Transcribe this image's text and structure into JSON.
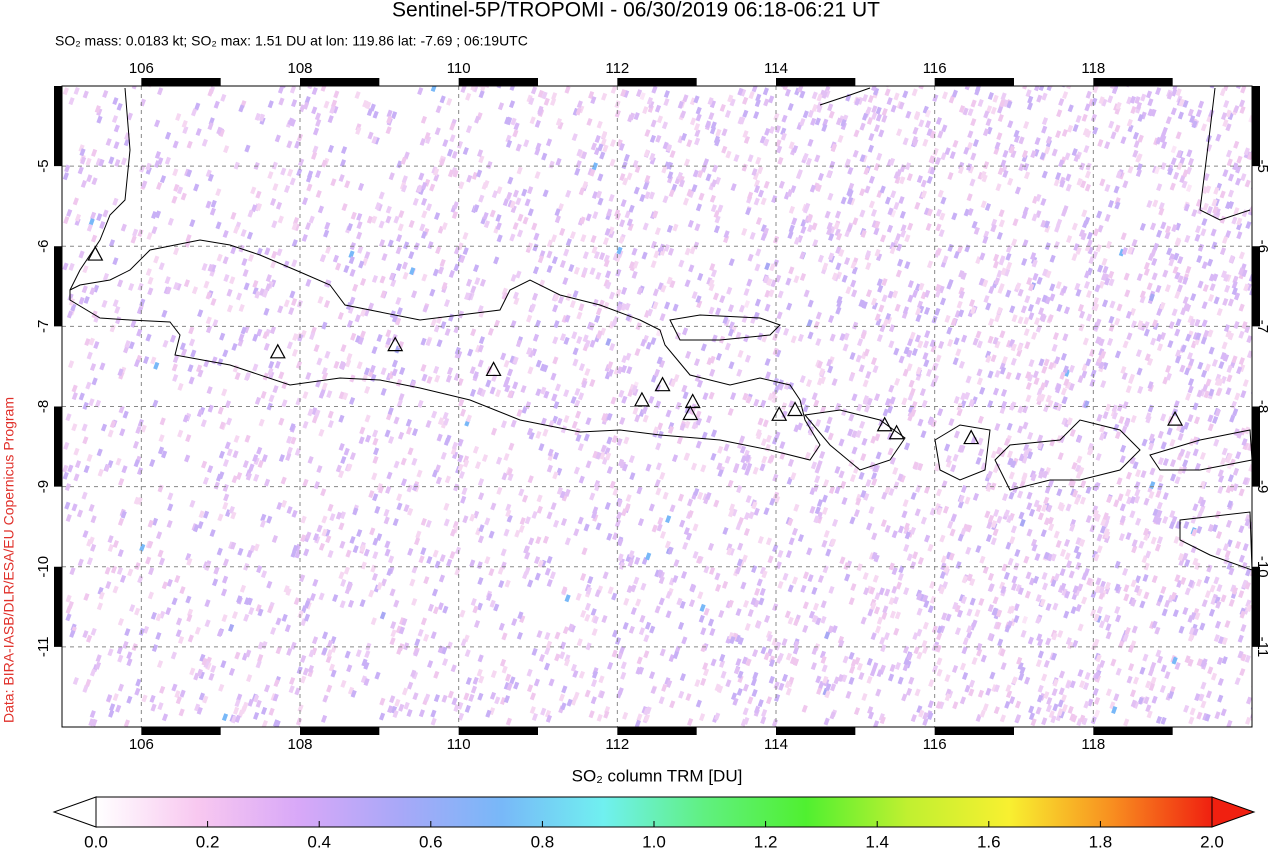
{
  "header": {
    "title": "Sentinel-5P/TROPOMI - 06/30/2019 06:18-06:21 UT",
    "subtitle": "SO₂ mass: 0.0183 kt; SO₂ max: 1.51 DU at lon: 119.86 lat: -7.69 ; 06:19UTC"
  },
  "credit": "Data: BIRA-IASB/DLR/ESA/EU Copernicus Program",
  "chart_data": {
    "type": "map",
    "xlim": [
      105,
      120
    ],
    "ylim": [
      -12,
      -4
    ],
    "xticks": [
      106,
      108,
      110,
      112,
      114,
      116,
      118
    ],
    "yticks": [
      -5,
      -6,
      -7,
      -8,
      -9,
      -10,
      -11
    ],
    "grid": true,
    "volcanoes": {
      "lon": [
        105.42,
        107.72,
        109.2,
        110.44,
        112.31,
        112.57,
        112.95,
        112.92,
        114.04,
        114.24,
        115.37,
        115.52,
        116.46,
        119.03
      ],
      "lat": [
        -6.11,
        -7.33,
        -7.24,
        -7.55,
        -7.93,
        -7.74,
        -7.95,
        -8.1,
        -8.11,
        -8.05,
        -8.24,
        -8.34,
        -8.4,
        -8.17
      ]
    }
  },
  "colorbar": {
    "label": "SO₂ column TRM [DU]",
    "clim": [
      0,
      2
    ],
    "colors": [
      "#ffffff",
      "#f8c8f0",
      "#d8a8f8",
      "#a8a8f8",
      "#78b8f8",
      "#70f0f0",
      "#60f080",
      "#50f030",
      "#c0f030",
      "#f8f030",
      "#f89020",
      "#f02010"
    ],
    "ticks": [
      {
        "value": 0,
        "label": "0.0"
      },
      {
        "value": 0.2,
        "label": "0.2"
      },
      {
        "value": 0.4,
        "label": "0.4"
      },
      {
        "value": 0.6,
        "label": "0.6"
      },
      {
        "value": 0.8,
        "label": "0.8"
      },
      {
        "value": 1,
        "label": "1.0"
      },
      {
        "value": 1.2,
        "label": "1.2"
      },
      {
        "value": 1.4,
        "label": "1.4"
      },
      {
        "value": 1.6,
        "label": "1.6"
      },
      {
        "value": 1.8,
        "label": "1.8"
      },
      {
        "value": 2,
        "label": "2.0"
      }
    ]
  }
}
